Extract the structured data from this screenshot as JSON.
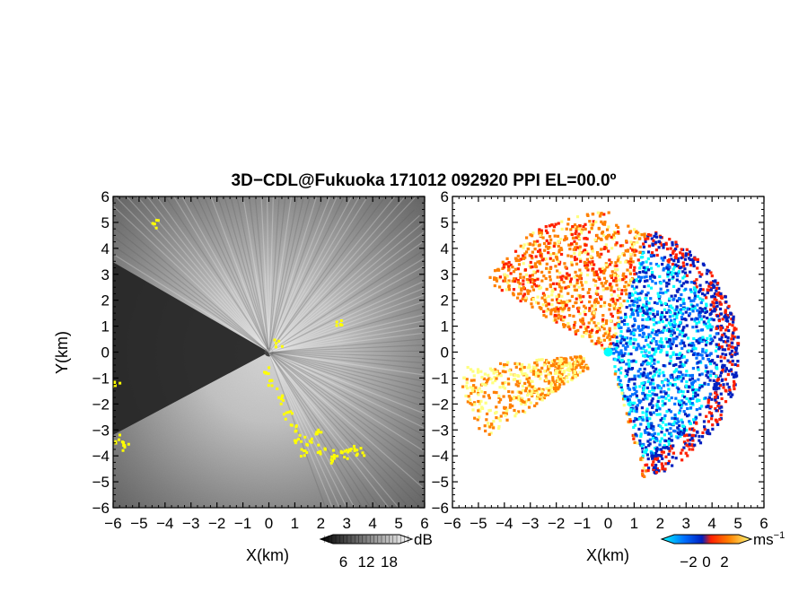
{
  "title": "3D−CDL@Fukuoka 171012 092920 PPI EL=00.0º",
  "chart_data": [
    {
      "type": "heatmap",
      "name": "reflectivity-ppi",
      "xlabel": "X(km)",
      "ylabel": "Y(km)",
      "xlim": [
        -6,
        6
      ],
      "ylim": [
        -6,
        6
      ],
      "x_ticks": [
        -6,
        -5,
        -4,
        -3,
        -2,
        -1,
        0,
        1,
        2,
        3,
        4,
        5,
        6
      ],
      "y_ticks": [
        -6,
        -5,
        -4,
        -3,
        -2,
        -1,
        0,
        1,
        2,
        3,
        4,
        5,
        6
      ],
      "colorbar": {
        "unit": "dB",
        "ticks": [
          6,
          12,
          18
        ],
        "range": [
          0,
          24
        ],
        "colors": [
          "#000000",
          "#ffffff"
        ],
        "highlight_color": "#ffff00"
      },
      "background_color": "#2a2a2a",
      "clutter_color": "#ffff00",
      "radar_origin": [
        0,
        0
      ]
    },
    {
      "type": "heatmap",
      "name": "doppler-velocity-ppi",
      "xlabel": "X(km)",
      "ylabel": "",
      "xlim": [
        -6,
        6
      ],
      "ylim": [
        -6,
        6
      ],
      "x_ticks": [
        -6,
        -5,
        -4,
        -3,
        -2,
        -1,
        0,
        1,
        2,
        3,
        4,
        5,
        6
      ],
      "y_ticks": [
        -6,
        -5,
        -4,
        -3,
        -2,
        -1,
        0,
        1,
        2,
        3,
        4,
        5,
        6
      ],
      "colorbar": {
        "unit": "ms",
        "unit_exponent": "−1",
        "ticks": [
          "−2",
          "0",
          "2"
        ],
        "tick_values": [
          -2,
          0,
          2
        ],
        "range": [
          -5,
          5
        ],
        "colors": [
          "#00ffff",
          "#0070ff",
          "#0020c0",
          "#ff2000",
          "#ff8000",
          "#ffff80"
        ]
      },
      "background_color": "#ffffff",
      "radar_origin": [
        0,
        0
      ]
    }
  ]
}
